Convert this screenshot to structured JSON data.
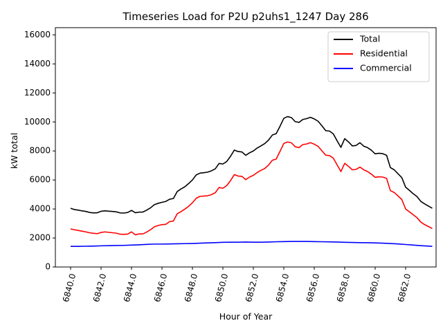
{
  "chart_data": {
    "type": "line",
    "title": "Timeseries Load for P2U p2uhs1_1247  Day 286",
    "xlabel": "Hour of Year",
    "ylabel": "kW total",
    "xlim": [
      6839.0,
      6864.0
    ],
    "ylim": [
      0,
      16500
    ],
    "x_ticks": [
      6840,
      6842,
      6844,
      6846,
      6848,
      6850,
      6852,
      6854,
      6856,
      6858,
      6860,
      6862
    ],
    "x_tick_labels": [
      "6840.0",
      "6842.0",
      "6844.0",
      "6846.0",
      "6848.0",
      "6850.0",
      "6852.0",
      "6854.0",
      "6856.0",
      "6858.0",
      "6860.0",
      "6862.0"
    ],
    "y_ticks": [
      0,
      2000,
      4000,
      6000,
      8000,
      10000,
      12000,
      14000,
      16000
    ],
    "y_tick_labels": [
      "0",
      "2000",
      "4000",
      "6000",
      "8000",
      "10000",
      "12000",
      "14000",
      "16000"
    ],
    "grid": false,
    "legend_position": "top-right",
    "series": [
      {
        "name": "Total",
        "color": "#000000",
        "points": [
          [
            6840.0,
            4050
          ],
          [
            6840.25,
            3960
          ],
          [
            6840.5,
            3920
          ],
          [
            6840.75,
            3870
          ],
          [
            6841.0,
            3830
          ],
          [
            6841.25,
            3760
          ],
          [
            6841.5,
            3730
          ],
          [
            6841.75,
            3740
          ],
          [
            6842.0,
            3840
          ],
          [
            6842.25,
            3870
          ],
          [
            6842.5,
            3850
          ],
          [
            6842.75,
            3830
          ],
          [
            6843.0,
            3800
          ],
          [
            6843.25,
            3730
          ],
          [
            6843.5,
            3720
          ],
          [
            6843.75,
            3760
          ],
          [
            6844.0,
            3900
          ],
          [
            6844.25,
            3740
          ],
          [
            6844.5,
            3780
          ],
          [
            6844.75,
            3790
          ],
          [
            6845.0,
            3920
          ],
          [
            6845.25,
            4080
          ],
          [
            6845.5,
            4300
          ],
          [
            6845.75,
            4390
          ],
          [
            6846.0,
            4460
          ],
          [
            6846.25,
            4520
          ],
          [
            6846.5,
            4670
          ],
          [
            6846.75,
            4720
          ],
          [
            6847.0,
            5200
          ],
          [
            6847.25,
            5380
          ],
          [
            6847.5,
            5530
          ],
          [
            6847.75,
            5750
          ],
          [
            6848.0,
            6000
          ],
          [
            6848.25,
            6350
          ],
          [
            6848.5,
            6470
          ],
          [
            6848.75,
            6500
          ],
          [
            6849.0,
            6540
          ],
          [
            6849.25,
            6630
          ],
          [
            6849.5,
            6770
          ],
          [
            6849.75,
            7140
          ],
          [
            6850.0,
            7100
          ],
          [
            6850.25,
            7270
          ],
          [
            6850.5,
            7630
          ],
          [
            6850.75,
            8060
          ],
          [
            6851.0,
            7960
          ],
          [
            6851.25,
            7930
          ],
          [
            6851.5,
            7700
          ],
          [
            6851.75,
            7870
          ],
          [
            6852.0,
            8000
          ],
          [
            6852.25,
            8200
          ],
          [
            6852.5,
            8350
          ],
          [
            6852.75,
            8510
          ],
          [
            6853.0,
            8750
          ],
          [
            6853.25,
            9100
          ],
          [
            6853.5,
            9190
          ],
          [
            6853.75,
            9700
          ],
          [
            6854.0,
            10250
          ],
          [
            6854.25,
            10370
          ],
          [
            6854.5,
            10300
          ],
          [
            6854.75,
            10020
          ],
          [
            6855.0,
            9970
          ],
          [
            6855.25,
            10170
          ],
          [
            6855.5,
            10230
          ],
          [
            6855.75,
            10320
          ],
          [
            6856.0,
            10210
          ],
          [
            6856.25,
            10050
          ],
          [
            6856.5,
            9740
          ],
          [
            6856.75,
            9400
          ],
          [
            6857.0,
            9370
          ],
          [
            6857.25,
            9180
          ],
          [
            6857.5,
            8700
          ],
          [
            6857.75,
            8250
          ],
          [
            6858.0,
            8850
          ],
          [
            6858.25,
            8620
          ],
          [
            6858.5,
            8350
          ],
          [
            6858.75,
            8380
          ],
          [
            6859.0,
            8570
          ],
          [
            6859.25,
            8330
          ],
          [
            6859.5,
            8230
          ],
          [
            6859.75,
            8050
          ],
          [
            6860.0,
            7800
          ],
          [
            6860.25,
            7840
          ],
          [
            6860.5,
            7810
          ],
          [
            6860.75,
            7700
          ],
          [
            6861.0,
            6850
          ],
          [
            6861.25,
            6700
          ],
          [
            6861.5,
            6430
          ],
          [
            6861.75,
            6160
          ],
          [
            6862.0,
            5500
          ],
          [
            6862.25,
            5280
          ],
          [
            6862.5,
            5050
          ],
          [
            6862.75,
            4850
          ],
          [
            6863.0,
            4520
          ],
          [
            6863.25,
            4350
          ],
          [
            6863.5,
            4200
          ],
          [
            6863.75,
            4050
          ]
        ]
      },
      {
        "name": "Residential",
        "color": "#ff0000",
        "points": [
          [
            6840.0,
            2620
          ],
          [
            6840.25,
            2570
          ],
          [
            6840.5,
            2520
          ],
          [
            6840.75,
            2470
          ],
          [
            6841.0,
            2420
          ],
          [
            6841.25,
            2360
          ],
          [
            6841.5,
            2320
          ],
          [
            6841.75,
            2300
          ],
          [
            6842.0,
            2380
          ],
          [
            6842.25,
            2420
          ],
          [
            6842.5,
            2390
          ],
          [
            6842.75,
            2360
          ],
          [
            6843.0,
            2330
          ],
          [
            6843.25,
            2260
          ],
          [
            6843.5,
            2250
          ],
          [
            6843.75,
            2270
          ],
          [
            6844.0,
            2420
          ],
          [
            6844.25,
            2220
          ],
          [
            6844.5,
            2280
          ],
          [
            6844.75,
            2280
          ],
          [
            6845.0,
            2410
          ],
          [
            6845.25,
            2570
          ],
          [
            6845.5,
            2770
          ],
          [
            6845.75,
            2860
          ],
          [
            6846.0,
            2920
          ],
          [
            6846.25,
            2940
          ],
          [
            6846.5,
            3130
          ],
          [
            6846.75,
            3170
          ],
          [
            6847.0,
            3670
          ],
          [
            6847.25,
            3820
          ],
          [
            6847.5,
            3990
          ],
          [
            6847.75,
            4180
          ],
          [
            6848.0,
            4430
          ],
          [
            6848.25,
            4740
          ],
          [
            6848.5,
            4870
          ],
          [
            6848.75,
            4890
          ],
          [
            6849.0,
            4910
          ],
          [
            6849.25,
            4990
          ],
          [
            6849.5,
            5120
          ],
          [
            6849.75,
            5480
          ],
          [
            6850.0,
            5430
          ],
          [
            6850.25,
            5610
          ],
          [
            6850.5,
            5950
          ],
          [
            6850.75,
            6370
          ],
          [
            6851.0,
            6270
          ],
          [
            6851.25,
            6250
          ],
          [
            6851.5,
            6020
          ],
          [
            6851.75,
            6200
          ],
          [
            6852.0,
            6320
          ],
          [
            6852.25,
            6510
          ],
          [
            6852.5,
            6660
          ],
          [
            6852.75,
            6790
          ],
          [
            6853.0,
            7030
          ],
          [
            6853.25,
            7360
          ],
          [
            6853.5,
            7440
          ],
          [
            6853.75,
            7970
          ],
          [
            6854.0,
            8520
          ],
          [
            6854.25,
            8620
          ],
          [
            6854.5,
            8560
          ],
          [
            6854.75,
            8290
          ],
          [
            6855.0,
            8230
          ],
          [
            6855.25,
            8440
          ],
          [
            6855.5,
            8480
          ],
          [
            6855.75,
            8570
          ],
          [
            6856.0,
            8470
          ],
          [
            6856.25,
            8320
          ],
          [
            6856.5,
            8010
          ],
          [
            6856.75,
            7710
          ],
          [
            6857.0,
            7680
          ],
          [
            6857.25,
            7510
          ],
          [
            6857.5,
            7040
          ],
          [
            6857.75,
            6580
          ],
          [
            6858.0,
            7150
          ],
          [
            6858.25,
            6940
          ],
          [
            6858.5,
            6700
          ],
          [
            6858.75,
            6730
          ],
          [
            6859.0,
            6890
          ],
          [
            6859.25,
            6700
          ],
          [
            6859.5,
            6580
          ],
          [
            6859.75,
            6400
          ],
          [
            6860.0,
            6180
          ],
          [
            6860.25,
            6220
          ],
          [
            6860.5,
            6200
          ],
          [
            6860.75,
            6110
          ],
          [
            6861.0,
            5260
          ],
          [
            6861.25,
            5140
          ],
          [
            6861.5,
            4900
          ],
          [
            6861.75,
            4650
          ],
          [
            6862.0,
            4000
          ],
          [
            6862.25,
            3800
          ],
          [
            6862.5,
            3600
          ],
          [
            6862.75,
            3400
          ],
          [
            6863.0,
            3090
          ],
          [
            6863.25,
            2920
          ],
          [
            6863.5,
            2790
          ],
          [
            6863.75,
            2650
          ]
        ]
      },
      {
        "name": "Commercial",
        "color": "#0000ff",
        "points": [
          [
            6840.0,
            1420
          ],
          [
            6840.5,
            1420
          ],
          [
            6841.0,
            1430
          ],
          [
            6841.5,
            1440
          ],
          [
            6842.0,
            1460
          ],
          [
            6842.5,
            1470
          ],
          [
            6843.0,
            1480
          ],
          [
            6843.5,
            1490
          ],
          [
            6844.0,
            1510
          ],
          [
            6844.5,
            1530
          ],
          [
            6845.0,
            1560
          ],
          [
            6845.5,
            1580
          ],
          [
            6846.0,
            1580
          ],
          [
            6846.5,
            1590
          ],
          [
            6847.0,
            1600
          ],
          [
            6847.5,
            1610
          ],
          [
            6848.0,
            1620
          ],
          [
            6848.5,
            1640
          ],
          [
            6849.0,
            1660
          ],
          [
            6849.5,
            1680
          ],
          [
            6850.0,
            1700
          ],
          [
            6850.5,
            1710
          ],
          [
            6851.0,
            1710
          ],
          [
            6851.5,
            1720
          ],
          [
            6852.0,
            1710
          ],
          [
            6852.5,
            1710
          ],
          [
            6853.0,
            1720
          ],
          [
            6853.5,
            1740
          ],
          [
            6854.0,
            1750
          ],
          [
            6854.5,
            1760
          ],
          [
            6855.0,
            1760
          ],
          [
            6855.5,
            1760
          ],
          [
            6856.0,
            1750
          ],
          [
            6856.5,
            1740
          ],
          [
            6857.0,
            1730
          ],
          [
            6857.5,
            1720
          ],
          [
            6858.0,
            1700
          ],
          [
            6858.5,
            1690
          ],
          [
            6859.0,
            1680
          ],
          [
            6859.5,
            1670
          ],
          [
            6860.0,
            1660
          ],
          [
            6860.5,
            1640
          ],
          [
            6861.0,
            1620
          ],
          [
            6861.5,
            1590
          ],
          [
            6862.0,
            1550
          ],
          [
            6862.5,
            1510
          ],
          [
            6863.0,
            1470
          ],
          [
            6863.5,
            1440
          ],
          [
            6863.75,
            1420
          ]
        ]
      }
    ]
  }
}
